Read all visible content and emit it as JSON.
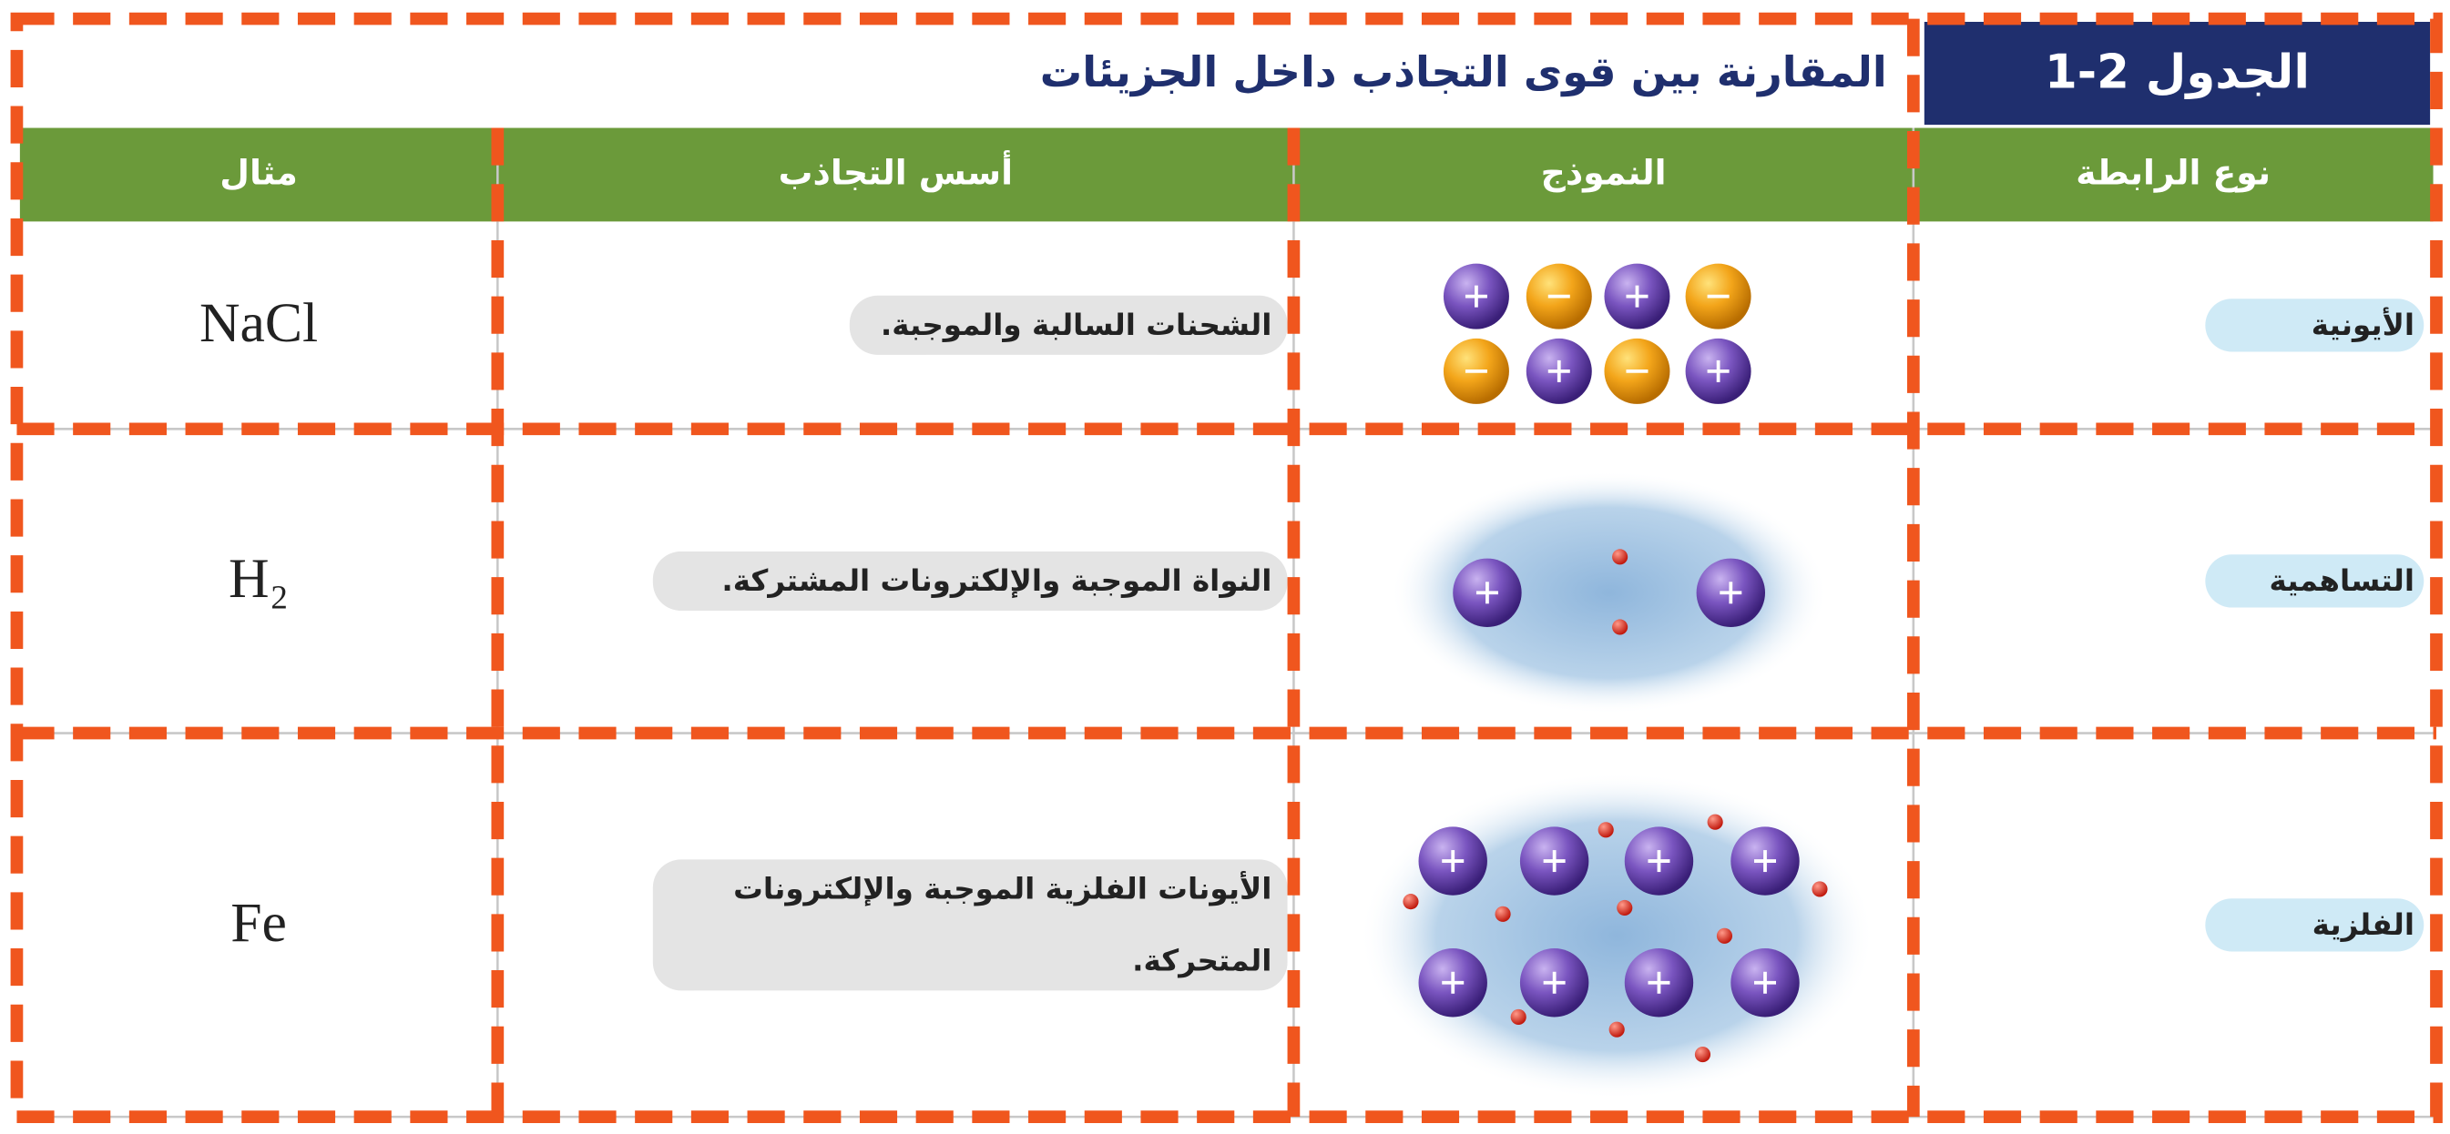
{
  "header": {
    "label": "الجدول 2-1",
    "title": "المقارنة بين قوى التجاذب داخل الجزيئات"
  },
  "table": {
    "columns": [
      "نوع الرابطة",
      "النموذج",
      "أسس التجاذب",
      "مثال"
    ],
    "rows": [
      {
        "bond": "الأيونية",
        "basis": [
          "الشحنات السالبة والموجبة."
        ],
        "example": "NaCl"
      },
      {
        "bond": "التساهمية",
        "basis": [
          "النواة الموجبة والإلكترونات المشتركة."
        ],
        "example": "H₂"
      },
      {
        "bond": "الفلزية",
        "basis": [
          "الأيونات الفلزية الموجبة والإلكترونات",
          "المتحركة."
        ],
        "example": "Fe"
      }
    ]
  }
}
